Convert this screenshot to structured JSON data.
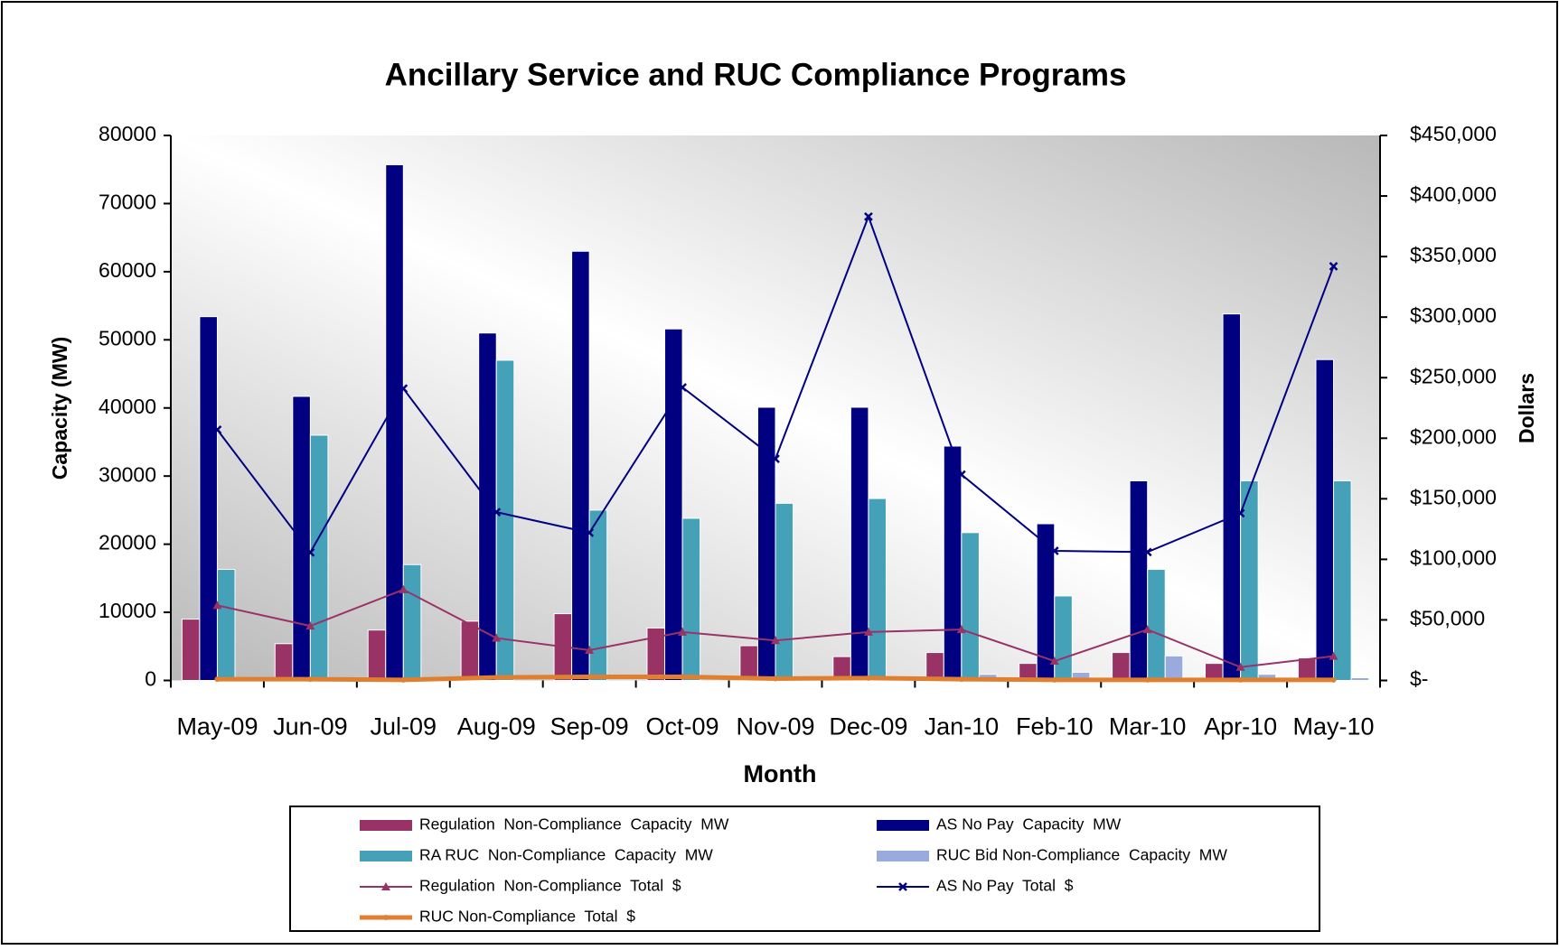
{
  "chart_data": {
    "type": "bar",
    "title": "Ancillary Service and RUC Compliance Programs",
    "xlabel": "Month",
    "ylabel": "Capacity (MW)",
    "y2label": "Dollars",
    "categories": [
      "May-09",
      "Jun-09",
      "Jul-09",
      "Aug-09",
      "Sep-09",
      "Oct-09",
      "Nov-09",
      "Dec-09",
      "Jan-10",
      "Feb-10",
      "Mar-10",
      "Apr-10",
      "May-10"
    ],
    "ylim": [
      0,
      80000
    ],
    "yticks": [
      0,
      10000,
      20000,
      30000,
      40000,
      50000,
      60000,
      70000,
      80000
    ],
    "y2lim": [
      0,
      450000
    ],
    "y2ticks": [
      {
        "value": 0,
        "label": "$-"
      },
      {
        "value": 50000,
        "label": "$50,000"
      },
      {
        "value": 100000,
        "label": "$100,000"
      },
      {
        "value": 150000,
        "label": "$150,000"
      },
      {
        "value": 200000,
        "label": "$200,000"
      },
      {
        "value": 250000,
        "label": "$250,000"
      },
      {
        "value": 300000,
        "label": "$300,000"
      },
      {
        "value": 350000,
        "label": "$350,000"
      },
      {
        "value": 400000,
        "label": "$400,000"
      },
      {
        "value": 450000,
        "label": "$450,000"
      }
    ],
    "series": [
      {
        "name": "Regulation  Non-Compliance  Capacity  MW",
        "type": "bar",
        "color": "#993366",
        "values": [
          9000,
          5400,
          7400,
          8700,
          9800,
          7700,
          5100,
          3500,
          4100,
          2500,
          4100,
          2500,
          3300
        ]
      },
      {
        "name": "AS No Pay  Capacity  MW",
        "type": "bar",
        "color": "#000080",
        "values": [
          53400,
          41700,
          75700,
          51000,
          63000,
          51600,
          40100,
          40100,
          34400,
          23000,
          29300,
          53800,
          47100
        ]
      },
      {
        "name": "RA RUC  Non-Compliance  Capacity  MW",
        "type": "bar",
        "color": "#45a1b8",
        "values": [
          16300,
          36000,
          17000,
          47000,
          25000,
          23800,
          26000,
          26700,
          21700,
          12400,
          16300,
          29300,
          29300
        ]
      },
      {
        "name": "RUC Bid Non-Compliance  Capacity  MW",
        "type": "bar",
        "color": "#99aadd",
        "values": [
          0,
          0,
          0,
          0,
          0,
          0,
          0,
          0,
          900,
          1200,
          3600,
          900,
          400
        ]
      },
      {
        "name": "Regulation  Non-Compliance  Total  $",
        "type": "line",
        "axis": "y2",
        "color": "#993366",
        "marker": "triangle",
        "values": [
          62000,
          45000,
          75000,
          35000,
          25000,
          40000,
          33000,
          40000,
          42000,
          16000,
          42000,
          11000,
          20000
        ]
      },
      {
        "name": "AS No Pay  Total  $",
        "type": "line",
        "axis": "y2",
        "color": "#000080",
        "marker": "x",
        "values": [
          207000,
          105700,
          241000,
          139000,
          122000,
          242000,
          183000,
          383000,
          170000,
          107000,
          106000,
          138000,
          342000
        ]
      },
      {
        "name": "RUC Non-Compliance  Total  $",
        "type": "line",
        "axis": "y2",
        "color": "#e07f30",
        "marker": "circle",
        "values": [
          1000,
          1000,
          500,
          2500,
          3000,
          3000,
          1500,
          2000,
          1000,
          500,
          500,
          500,
          500
        ]
      }
    ]
  }
}
